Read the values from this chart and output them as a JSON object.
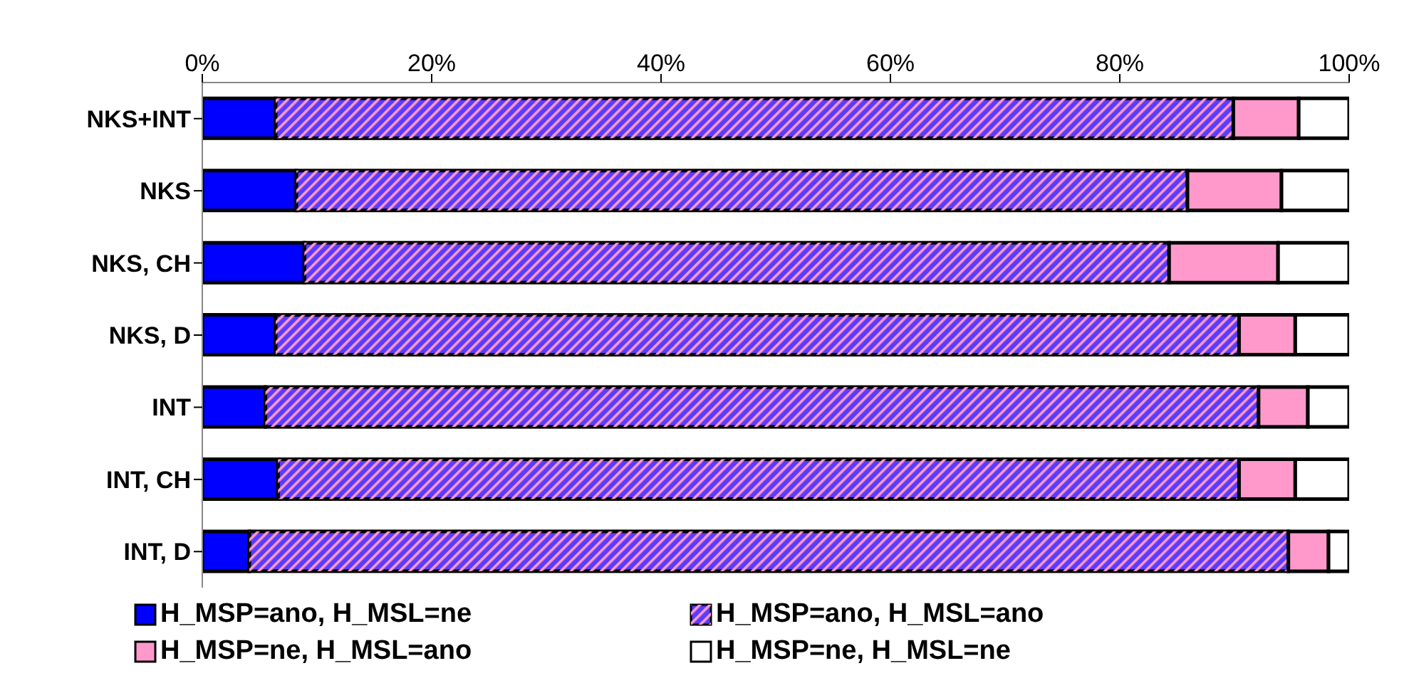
{
  "chart_data": {
    "type": "bar",
    "orientation": "horizontal",
    "stacked": true,
    "categories": [
      "NKS+INT",
      "NKS",
      "NKS, CH",
      "NKS, D",
      "INT",
      "INT, CH",
      "INT, D"
    ],
    "series": [
      {
        "name": "H_MSP=ano, H_MSL=ne",
        "color": "#0000ff",
        "values": [
          6.4,
          8.2,
          8.9,
          6.4,
          5.5,
          6.6,
          4.1
        ]
      },
      {
        "name": "H_MSP=ano, H_MSL=ano",
        "color": "#5a3cff",
        "values": [
          83.5,
          77.7,
          75.4,
          84.0,
          86.6,
          83.8,
          90.6
        ]
      },
      {
        "name": "H_MSP=ne, H_MSL=ano",
        "color": "#ff99cc",
        "values": [
          5.7,
          8.2,
          9.5,
          4.9,
          4.3,
          4.9,
          3.5
        ]
      },
      {
        "name": "H_MSP=ne, H_MSL=ne",
        "color": "#ffffff",
        "values": [
          4.4,
          5.9,
          6.2,
          4.7,
          3.6,
          4.7,
          1.8
        ]
      }
    ],
    "xlim": [
      0,
      100
    ],
    "xticks": [
      {
        "value": 0,
        "label": "0%"
      },
      {
        "value": 20,
        "label": "20%"
      },
      {
        "value": 40,
        "label": "40%"
      },
      {
        "value": 60,
        "label": "60%"
      },
      {
        "value": 80,
        "label": "80%"
      },
      {
        "value": 100,
        "label": "100%"
      }
    ],
    "grid": false,
    "legend": "bottom"
  }
}
